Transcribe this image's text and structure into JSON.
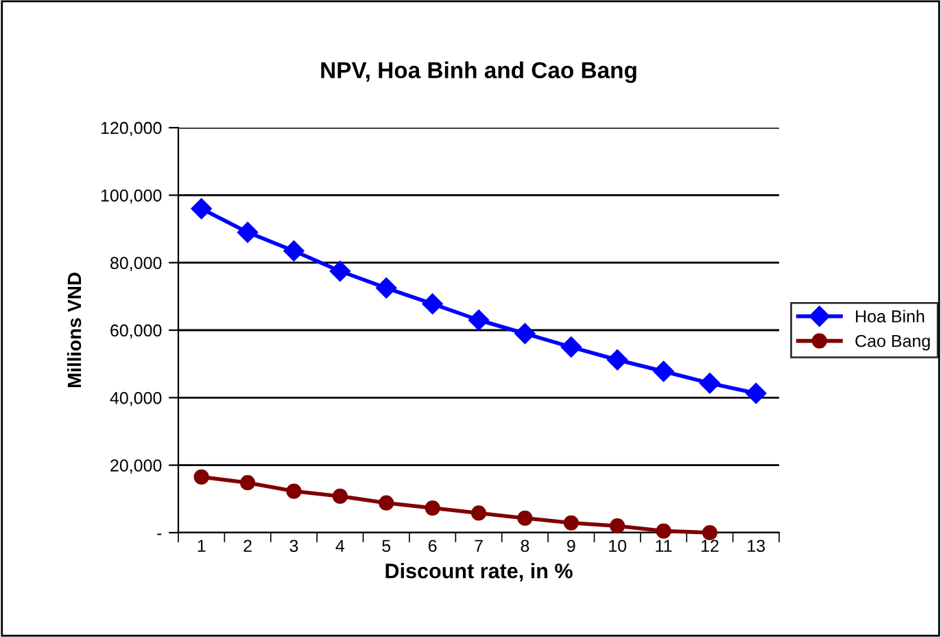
{
  "chart_data": {
    "type": "line",
    "title": "NPV, Hoa Binh and Cao Bang",
    "xlabel": "Discount rate, in %",
    "ylabel": "Millions VND",
    "categories": [
      "1",
      "2",
      "3",
      "4",
      "5",
      "6",
      "7",
      "8",
      "9",
      "10",
      "11",
      "12",
      "13"
    ],
    "series": [
      {
        "name": "Hoa Binh",
        "color": "#0000ff",
        "marker": "diamond",
        "values": [
          96000,
          89000,
          83500,
          77500,
          72500,
          67800,
          63000,
          59000,
          55000,
          51200,
          47800,
          44300,
          41300
        ]
      },
      {
        "name": "Cao Bang",
        "color": "#800000",
        "marker": "circle",
        "values": [
          16500,
          14800,
          12300,
          10800,
          8800,
          7300,
          5800,
          4300,
          2900,
          2000,
          500,
          0,
          null
        ]
      }
    ],
    "ylim": [
      0,
      120000
    ],
    "yticks": [
      {
        "value": 0,
        "label": "-"
      },
      {
        "value": 20000,
        "label": "20,000"
      },
      {
        "value": 40000,
        "label": "40,000"
      },
      {
        "value": 60000,
        "label": "60,000"
      },
      {
        "value": 80000,
        "label": "80,000"
      },
      {
        "value": 100000,
        "label": "100,000"
      },
      {
        "value": 120000,
        "label": "120,000"
      }
    ],
    "grid": "y",
    "legend": "right"
  }
}
